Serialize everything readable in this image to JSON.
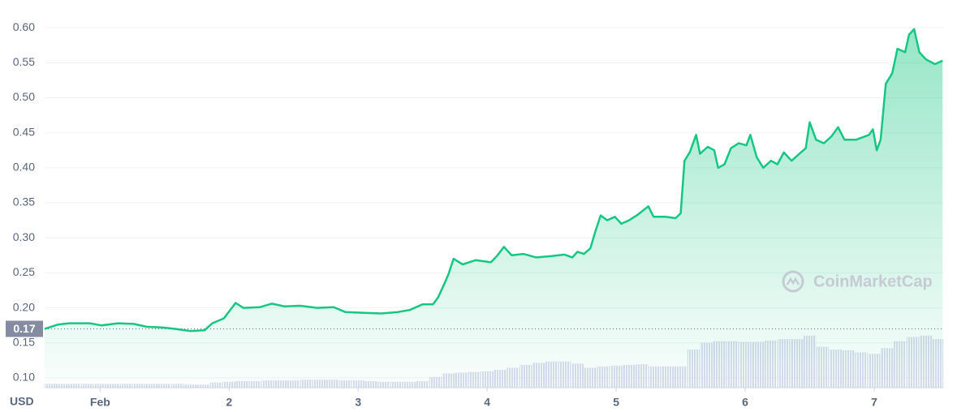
{
  "chart_data": {
    "type": "line",
    "x_label": "USD",
    "watermark": "CoinMarketCap",
    "color": "#16c784",
    "current_price": 0.17,
    "xlim": [
      0.57,
      7.535
    ],
    "xticks": [
      {
        "value": 1,
        "label": "Feb"
      },
      2,
      3,
      4,
      5,
      6,
      7
    ],
    "ylim": [
      0.086,
      0.628
    ],
    "yticks": [
      {
        "value": 0.1,
        "label": "0.10"
      },
      0.15,
      {
        "value": 0.2,
        "label": "0.20"
      },
      0.25,
      {
        "value": 0.3,
        "label": "0.30"
      },
      0.35,
      {
        "value": 0.4,
        "label": "0.40"
      },
      0.45,
      {
        "value": 0.5,
        "label": "0.50"
      },
      0.55,
      {
        "value": 0.6,
        "label": "0.60"
      }
    ],
    "grid": true,
    "x": [
      0.57,
      0.67,
      0.76,
      0.92,
      1.01,
      1.14,
      1.26,
      1.36,
      1.48,
      1.58,
      1.7,
      1.81,
      1.87,
      1.96,
      2.05,
      2.11,
      2.24,
      2.33,
      2.43,
      2.55,
      2.68,
      2.81,
      2.9,
      3.03,
      3.18,
      3.31,
      3.4,
      3.5,
      3.58,
      3.62,
      3.67,
      3.7,
      3.74,
      3.81,
      3.91,
      4.03,
      4.08,
      4.13,
      4.19,
      4.28,
      4.38,
      4.5,
      4.6,
      4.66,
      4.7,
      4.75,
      4.8,
      4.84,
      4.88,
      4.93,
      4.99,
      5.04,
      5.1,
      5.16,
      5.25,
      5.29,
      5.38,
      5.46,
      5.5,
      5.53,
      5.57,
      5.62,
      5.65,
      5.71,
      5.76,
      5.79,
      5.84,
      5.89,
      5.95,
      6.01,
      6.04,
      6.09,
      6.14,
      6.2,
      6.25,
      6.3,
      6.36,
      6.42,
      6.47,
      6.5,
      6.55,
      6.61,
      6.67,
      6.72,
      6.77,
      6.86,
      6.96,
      6.99,
      7.02,
      7.05,
      7.09,
      7.14,
      7.18,
      7.24,
      7.27,
      7.31,
      7.35,
      7.4,
      7.47,
      7.53
    ],
    "values": [
      0.17,
      0.176,
      0.178,
      0.178,
      0.175,
      0.178,
      0.177,
      0.173,
      0.172,
      0.17,
      0.167,
      0.168,
      0.178,
      0.185,
      0.207,
      0.2,
      0.201,
      0.206,
      0.202,
      0.203,
      0.2,
      0.201,
      0.194,
      0.193,
      0.192,
      0.194,
      0.197,
      0.205,
      0.205,
      0.215,
      0.235,
      0.248,
      0.27,
      0.262,
      0.268,
      0.265,
      0.275,
      0.287,
      0.275,
      0.277,
      0.272,
      0.274,
      0.276,
      0.272,
      0.28,
      0.277,
      0.285,
      0.31,
      0.332,
      0.325,
      0.33,
      0.32,
      0.325,
      0.332,
      0.345,
      0.33,
      0.33,
      0.328,
      0.335,
      0.41,
      0.422,
      0.447,
      0.42,
      0.43,
      0.425,
      0.4,
      0.405,
      0.428,
      0.435,
      0.432,
      0.447,
      0.415,
      0.4,
      0.41,
      0.405,
      0.422,
      0.41,
      0.42,
      0.428,
      0.465,
      0.44,
      0.435,
      0.445,
      0.458,
      0.44,
      0.44,
      0.447,
      0.455,
      0.425,
      0.44,
      0.52,
      0.535,
      0.57,
      0.565,
      0.59,
      0.598,
      0.565,
      0.555,
      0.548,
      0.553
    ],
    "volume": {
      "color": "#dfe2ef",
      "x": [
        0.6,
        0.7,
        0.8,
        0.9,
        1.0,
        1.1,
        1.2,
        1.3,
        1.4,
        1.5,
        1.6,
        1.7,
        1.8,
        1.9,
        2.0,
        2.1,
        2.2,
        2.3,
        2.4,
        2.5,
        2.6,
        2.7,
        2.8,
        2.9,
        3.0,
        3.1,
        3.2,
        3.3,
        3.4,
        3.5,
        3.6,
        3.7,
        3.8,
        3.9,
        4.0,
        4.1,
        4.2,
        4.3,
        4.4,
        4.5,
        4.6,
        4.7,
        4.8,
        4.9,
        5.0,
        5.1,
        5.2,
        5.3,
        5.4,
        5.5,
        5.6,
        5.7,
        5.8,
        5.9,
        6.0,
        6.1,
        6.2,
        6.3,
        6.4,
        6.5,
        6.6,
        6.7,
        6.8,
        6.9,
        7.0,
        7.1,
        7.2,
        7.3,
        7.4,
        7.5
      ],
      "values": [
        0.091,
        0.091,
        0.091,
        0.091,
        0.091,
        0.091,
        0.091,
        0.091,
        0.091,
        0.091,
        0.091,
        0.09,
        0.09,
        0.093,
        0.094,
        0.095,
        0.095,
        0.096,
        0.096,
        0.096,
        0.097,
        0.097,
        0.097,
        0.096,
        0.096,
        0.095,
        0.094,
        0.094,
        0.094,
        0.095,
        0.101,
        0.106,
        0.107,
        0.108,
        0.109,
        0.111,
        0.114,
        0.118,
        0.121,
        0.123,
        0.123,
        0.12,
        0.114,
        0.116,
        0.117,
        0.118,
        0.119,
        0.116,
        0.116,
        0.116,
        0.14,
        0.15,
        0.152,
        0.152,
        0.151,
        0.151,
        0.153,
        0.155,
        0.155,
        0.16,
        0.144,
        0.14,
        0.139,
        0.136,
        0.134,
        0.142,
        0.152,
        0.158,
        0.16,
        0.155
      ]
    }
  }
}
